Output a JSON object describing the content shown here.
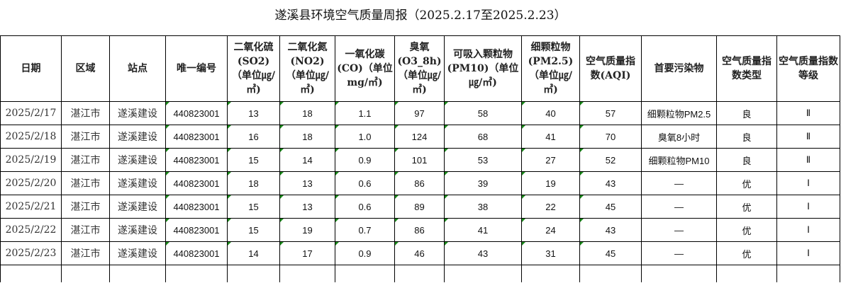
{
  "title": "遂溪县环境空气质量周报（2025.2.17至2025.2.23）",
  "headers": [
    "日期",
    "区域",
    "站点",
    "唯一编号",
    "二氧化硫(SO2)（单位㎍/㎥)",
    "二氧化氮(NO2)（单位㎍/㎥)",
    "一氧化碳(CO)（单位mg/㎥)",
    "臭氧(O3_8h)（单位㎍/㎥)",
    "可吸入颗粒物(PM10)（单位㎍/㎥)",
    "细颗粒物(PM2.5)（单位㎍/㎥)",
    "空气质量指数(AQI)",
    "首要污染物",
    "空气质量指数类型",
    "空气质量指数等级"
  ],
  "rows": [
    [
      "2025/2/17",
      "湛江市",
      "遂溪建设",
      "440823001",
      "13",
      "18",
      "1.1",
      "97",
      "58",
      "40",
      "57",
      "细颗粒物PM2.5",
      "良",
      "Ⅱ"
    ],
    [
      "2025/2/18",
      "湛江市",
      "遂溪建设",
      "440823001",
      "16",
      "18",
      "1.0",
      "124",
      "68",
      "41",
      "70",
      "臭氧8小时",
      "良",
      "Ⅱ"
    ],
    [
      "2025/2/19",
      "湛江市",
      "遂溪建设",
      "440823001",
      "15",
      "14",
      "0.9",
      "101",
      "53",
      "27",
      "52",
      "细颗粒物PM10",
      "良",
      "Ⅱ"
    ],
    [
      "2025/2/20",
      "湛江市",
      "遂溪建设",
      "440823001",
      "18",
      "13",
      "0.6",
      "86",
      "39",
      "19",
      "43",
      "—",
      "优",
      "Ⅰ"
    ],
    [
      "2025/2/21",
      "湛江市",
      "遂溪建设",
      "440823001",
      "15",
      "13",
      "0.6",
      "89",
      "38",
      "22",
      "45",
      "—",
      "优",
      "Ⅰ"
    ],
    [
      "2025/2/22",
      "湛江市",
      "遂溪建设",
      "440823001",
      "15",
      "19",
      "0.7",
      "86",
      "41",
      "24",
      "43",
      "—",
      "优",
      "Ⅰ"
    ],
    [
      "2025/2/23",
      "湛江市",
      "遂溪建设",
      "440823001",
      "14",
      "17",
      "0.9",
      "46",
      "43",
      "31",
      "45",
      "—",
      "优",
      "Ⅰ"
    ]
  ]
}
